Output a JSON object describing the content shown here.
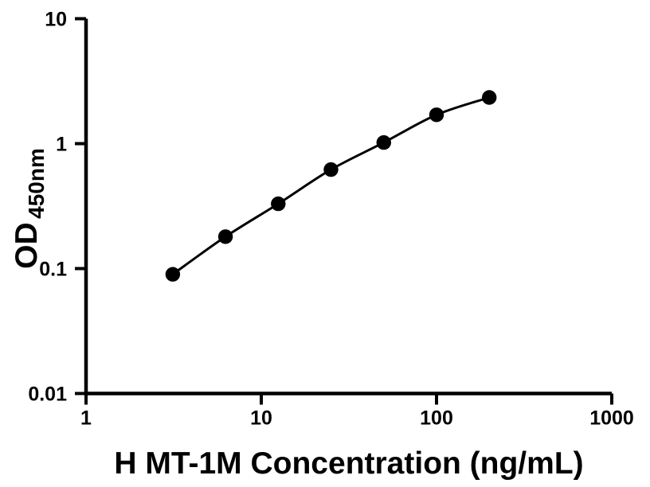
{
  "page": {
    "background": "#ffffff"
  },
  "chart_data": {
    "type": "scatter",
    "subtype": "line-with-markers",
    "title": "",
    "xlabel": "H MT-1M Concentration (ng/mL)",
    "ylabel_main": "OD",
    "ylabel_sub": "450nm",
    "x_scale": "log",
    "y_scale": "log",
    "xlim": [
      1,
      1000
    ],
    "ylim": [
      0.01,
      10
    ],
    "grid": false,
    "legend": false,
    "x_ticks": [
      {
        "value": 1,
        "label": "1"
      },
      {
        "value": 10,
        "label": "10"
      },
      {
        "value": 100,
        "label": "100"
      },
      {
        "value": 1000,
        "label": "1000"
      }
    ],
    "y_ticks": [
      {
        "value": 10,
        "label": "10"
      },
      {
        "value": 1,
        "label": "1"
      },
      {
        "value": 0.1,
        "label": "0.1"
      },
      {
        "value": 0.01,
        "label": "0.01"
      }
    ],
    "series": [
      {
        "name": "standard-curve",
        "marker": "filled-circle",
        "color": "#000000",
        "x": [
          3.125,
          6.25,
          12.5,
          25,
          50,
          100,
          200
        ],
        "y": [
          0.09,
          0.18,
          0.33,
          0.62,
          1.02,
          1.7,
          2.34
        ]
      }
    ],
    "colors": {
      "axis": "#000000",
      "line": "#000000",
      "marker": "#000000",
      "text": "#000000",
      "background": "#ffffff"
    }
  }
}
